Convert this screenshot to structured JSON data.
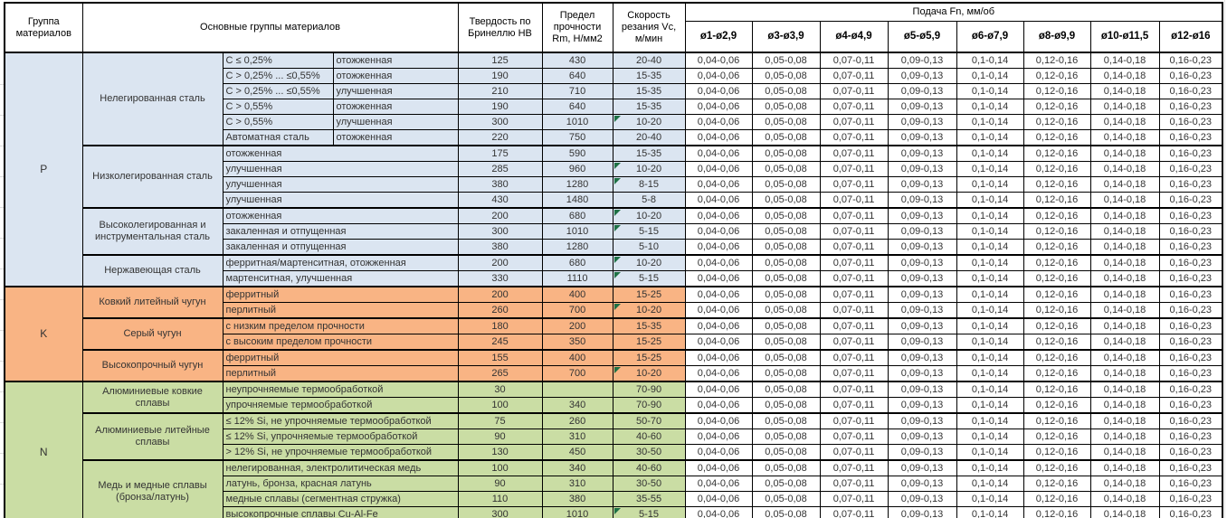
{
  "table": {
    "corner_header": "Группа материалов",
    "main_header": "Основные группы материалов",
    "hb_header": "Твердость по Бринеллю HB",
    "rm_header": "Предел прочности Rm, Н/мм2",
    "vc_header": "Скорость резания Vc, м/мин",
    "feed_header": "Подача Fn, мм/об",
    "feed_columns": [
      "ø1-ø2,9",
      "ø3-ø3,9",
      "ø4-ø4,9",
      "ø5-ø5,9",
      "ø6-ø7,9",
      "ø8-ø9,9",
      "ø10-ø11,5",
      "ø12-ø16"
    ],
    "feed_values": [
      "0,04-0,06",
      "0,05-0,08",
      "0,07-0,11",
      "0,09-0,13",
      "0,1-0,14",
      "0,12-0,16",
      "0,14-0,18",
      "0,16-0,23"
    ]
  },
  "colors": {
    "group_p": "#dbe5f1",
    "group_k": "#f9b484",
    "group_n": "#cadda4",
    "marker": "#1e7145",
    "border": "#000000"
  },
  "groups": [
    {
      "code": "P",
      "color": "#dbe5f1",
      "subgroups": [
        {
          "name": "Нелегированная сталь",
          "rows": [
            {
              "cond": [
                "C ≤ 0,25%",
                "отожженная"
              ],
              "hb": "125",
              "rm": "430",
              "vc": "20-40",
              "marker": false
            },
            {
              "cond": [
                "C > 0,25% ... ≤0,55%",
                "отожженная"
              ],
              "hb": "190",
              "rm": "640",
              "vc": "15-35",
              "marker": false
            },
            {
              "cond": [
                "C > 0,25% ... ≤0,55%",
                "улучшенная"
              ],
              "hb": "210",
              "rm": "710",
              "vc": "15-35",
              "marker": false
            },
            {
              "cond": [
                "C > 0,55%",
                "отожженная"
              ],
              "hb": "190",
              "rm": "640",
              "vc": "15-35",
              "marker": false
            },
            {
              "cond": [
                "C > 0,55%",
                "улучшенная"
              ],
              "hb": "300",
              "rm": "1010",
              "vc": "10-20",
              "marker": true
            },
            {
              "cond": [
                "Автоматная сталь",
                "отожженная"
              ],
              "hb": "220",
              "rm": "750",
              "vc": "20-40",
              "marker": false
            }
          ]
        },
        {
          "name": "Низколегированная сталь",
          "rows": [
            {
              "cond": [
                "отожженная"
              ],
              "hb": "175",
              "rm": "590",
              "vc": "15-35",
              "marker": false
            },
            {
              "cond": [
                "улучшенная"
              ],
              "hb": "285",
              "rm": "960",
              "vc": "10-20",
              "marker": true
            },
            {
              "cond": [
                "улучшенная"
              ],
              "hb": "380",
              "rm": "1280",
              "vc": "8-15",
              "marker": true
            },
            {
              "cond": [
                "улучшенная"
              ],
              "hb": "430",
              "rm": "1480",
              "vc": "5-8",
              "marker": false
            }
          ]
        },
        {
          "name": "Высоколегированная и инструментальная сталь",
          "rows": [
            {
              "cond": [
                "отожженная"
              ],
              "hb": "200",
              "rm": "680",
              "vc": "10-20",
              "marker": true
            },
            {
              "cond": [
                "закаленная и отпущенная"
              ],
              "hb": "300",
              "rm": "1010",
              "vc": "5-15",
              "marker": true
            },
            {
              "cond": [
                "закаленная и отпущенная"
              ],
              "hb": "380",
              "rm": "1280",
              "vc": "5-10",
              "marker": false
            }
          ]
        },
        {
          "name": "Нержавеющая сталь",
          "rows": [
            {
              "cond": [
                "ферритная/мартенситная, отожженная"
              ],
              "hb": "200",
              "rm": "680",
              "vc": "10-20",
              "marker": true
            },
            {
              "cond": [
                "мартенситная, улучшенная"
              ],
              "hb": "330",
              "rm": "1110",
              "vc": "5-15",
              "marker": true
            }
          ]
        }
      ]
    },
    {
      "code": "K",
      "color": "#f9b484",
      "subgroups": [
        {
          "name": "Ковкий литейный чугун",
          "rows": [
            {
              "cond": [
                "ферритный"
              ],
              "hb": "200",
              "rm": "400",
              "vc": "15-25",
              "marker": false
            },
            {
              "cond": [
                "перлитный"
              ],
              "hb": "260",
              "rm": "700",
              "vc": "10-20",
              "marker": true
            }
          ]
        },
        {
          "name": "Серый чугун",
          "rows": [
            {
              "cond": [
                "с низким пределом прочности"
              ],
              "hb": "180",
              "rm": "200",
              "vc": "15-35",
              "marker": false
            },
            {
              "cond": [
                "с высоким пределом прочности"
              ],
              "hb": "245",
              "rm": "350",
              "vc": "15-25",
              "marker": false
            }
          ]
        },
        {
          "name": "Высокопрочный чугун",
          "rows": [
            {
              "cond": [
                "ферритный"
              ],
              "hb": "155",
              "rm": "400",
              "vc": "15-25",
              "marker": false
            },
            {
              "cond": [
                "перлитный"
              ],
              "hb": "265",
              "rm": "700",
              "vc": "10-20",
              "marker": true
            }
          ]
        }
      ]
    },
    {
      "code": "N",
      "color": "#cadda4",
      "subgroups": [
        {
          "name": "Алюминиевые ковкие сплавы",
          "rows": [
            {
              "cond": [
                "неупрочняемые термообработкой"
              ],
              "hb": "30",
              "rm": "",
              "vc": "70-90",
              "marker": false
            },
            {
              "cond": [
                "упрочняемые термообработкой"
              ],
              "hb": "100",
              "rm": "340",
              "vc": "70-90",
              "marker": false
            }
          ]
        },
        {
          "name": "Алюминиевые литейные сплавы",
          "rows": [
            {
              "cond": [
                "≤ 12% Si, не упрочняемые термообработкой"
              ],
              "hb": "75",
              "rm": "260",
              "vc": "50-70",
              "marker": false
            },
            {
              "cond": [
                "≤ 12% Si, упрочняемые термообработкой"
              ],
              "hb": "90",
              "rm": "310",
              "vc": "40-60",
              "marker": false
            },
            {
              "cond": [
                "> 12% Si, не упрочняемые термообработкой"
              ],
              "hb": "130",
              "rm": "450",
              "vc": "30-50",
              "marker": false
            }
          ]
        },
        {
          "name": "Медь и медные сплавы (бронза/латунь)",
          "rows": [
            {
              "cond": [
                "нелегированная, электролитическая медь"
              ],
              "hb": "100",
              "rm": "340",
              "vc": "40-60",
              "marker": false
            },
            {
              "cond": [
                "латунь, бронза, красная латунь"
              ],
              "hb": "90",
              "rm": "310",
              "vc": "30-50",
              "marker": false
            },
            {
              "cond": [
                "медные сплавы (сегментная стружка)"
              ],
              "hb": "110",
              "rm": "380",
              "vc": "35-55",
              "marker": false
            },
            {
              "cond": [
                "высокопрочные сплавы Cu-Al-Fe"
              ],
              "hb": "300",
              "rm": "1010",
              "vc": "5-15",
              "marker": true
            }
          ]
        }
      ]
    }
  ]
}
